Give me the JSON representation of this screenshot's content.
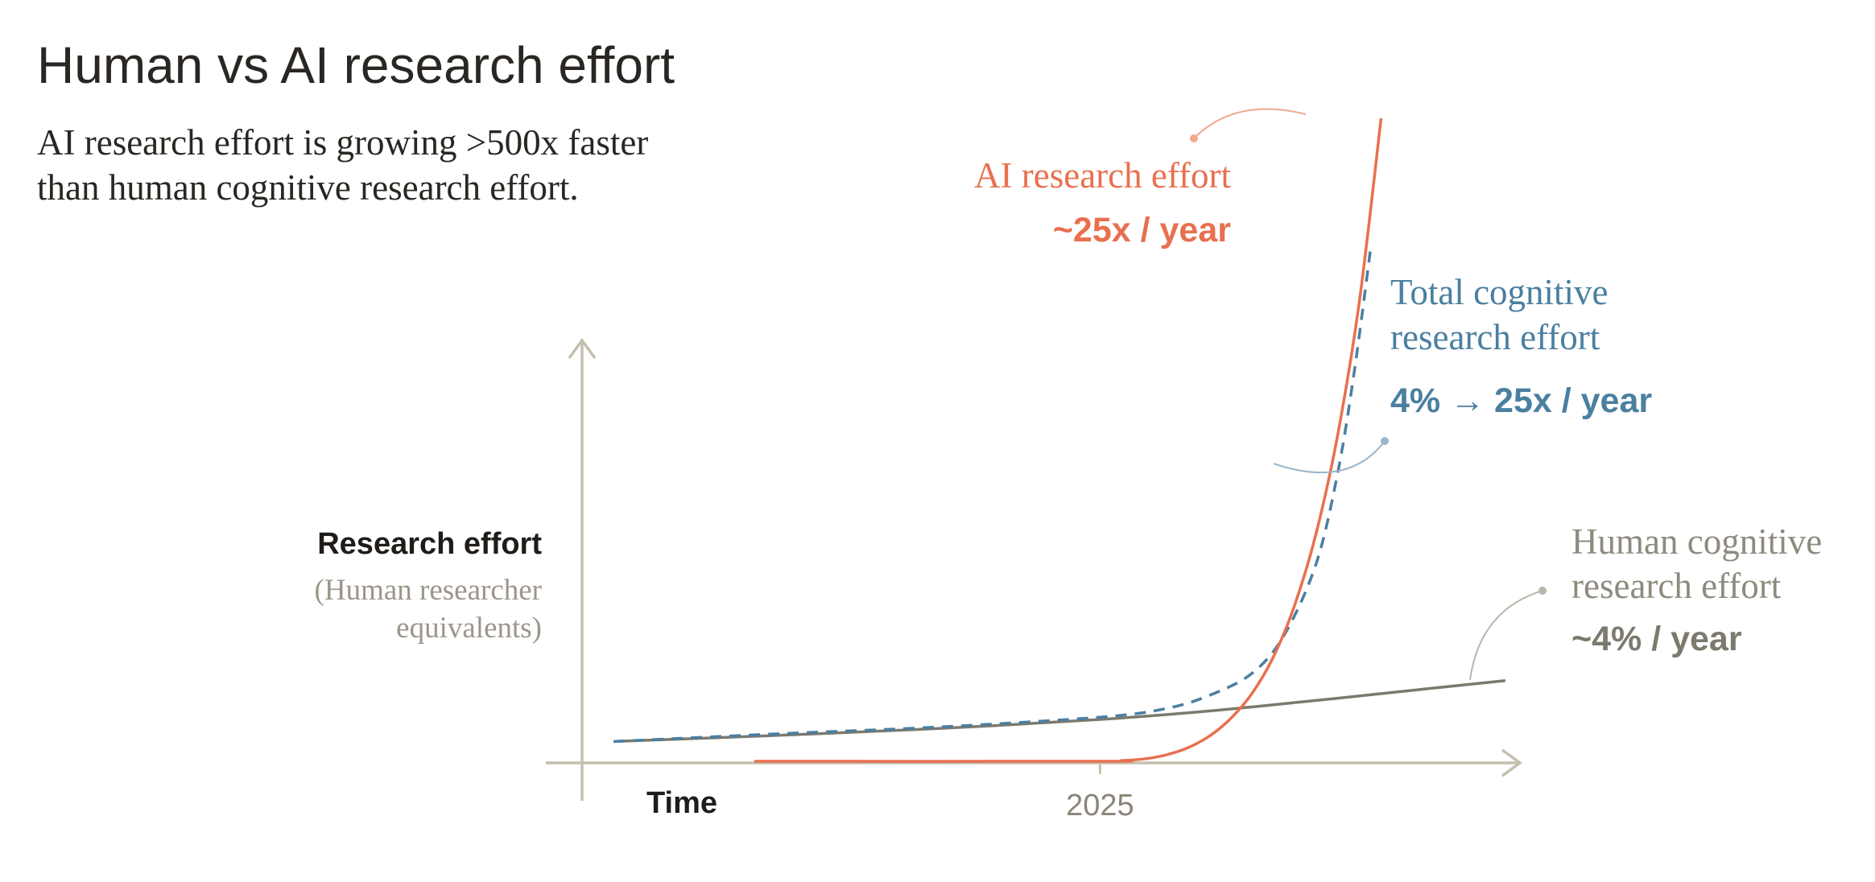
{
  "chart_data": {
    "type": "line",
    "title": "Human vs AI research effort",
    "subtitle_line1": "AI research effort is growing >500x faster",
    "subtitle_line2": "than human cognitive research effort.",
    "xlabel": "Time",
    "ylabel": "Research effort",
    "ylabel_sub_line1": "(Human researcher",
    "ylabel_sub_line2": "equivalents)",
    "x_tick_labels": [
      "2025"
    ],
    "x_tick_values": [
      0
    ],
    "xlim": [
      -4.8,
      3.9
    ],
    "ylim": [
      0,
      9
    ],
    "grid": false,
    "legend": "inline",
    "colors": {
      "ai": "#e8704f",
      "total": "#4a7fa0",
      "human": "#7c796d",
      "axis": "#c5bfae"
    },
    "series": [
      {
        "key": "ai",
        "name": "AI research effort",
        "growth_label": "~25x / year",
        "x": [
          -3.2,
          0.0,
          0.2,
          0.4,
          0.6,
          0.8,
          1.0,
          1.2,
          1.4,
          1.6,
          1.8,
          2.0,
          2.2,
          2.4,
          2.6
        ],
        "y": [
          0.0,
          0.0,
          0.01,
          0.03,
          0.08,
          0.17,
          0.32,
          0.55,
          0.88,
          1.36,
          2.05,
          3.0,
          4.3,
          6.05,
          8.45
        ]
      },
      {
        "key": "total",
        "name": "Total cognitive research effort",
        "growth_label": "4% → 25x / year",
        "x": [
          -4.5,
          -3.0,
          -1.5,
          0.0,
          0.6,
          1.0,
          1.4,
          1.7,
          2.0,
          2.2,
          2.35,
          2.5
        ],
        "y": [
          0.26,
          0.36,
          0.45,
          0.58,
          0.69,
          0.86,
          1.15,
          1.65,
          2.6,
          3.8,
          5.1,
          6.7
        ]
      },
      {
        "key": "human",
        "name": "Human cognitive research effort",
        "growth_label": "~4% / year",
        "x": [
          -4.5,
          -3.0,
          -1.5,
          0.0,
          1.0,
          2.0,
          3.0,
          3.75
        ],
        "y": [
          0.26,
          0.34,
          0.43,
          0.55,
          0.66,
          0.8,
          0.95,
          1.06
        ]
      }
    ]
  }
}
